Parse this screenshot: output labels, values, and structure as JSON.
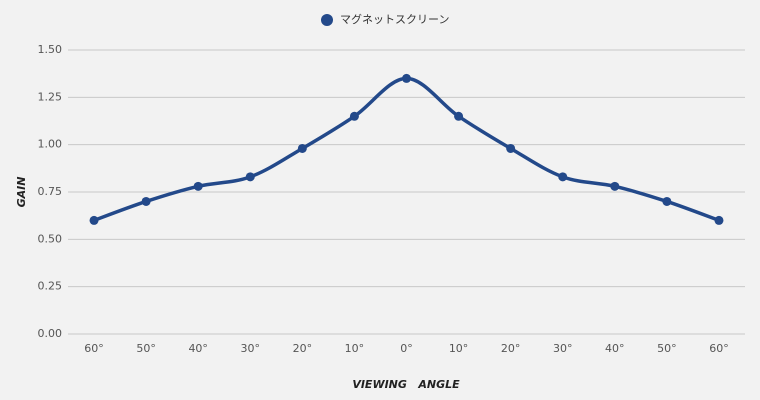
{
  "chart_data": {
    "type": "line",
    "x_label": "VIEWING   ANGLE",
    "y_label": "GAIN",
    "categories": [
      "60°",
      "50°",
      "40°",
      "30°",
      "20°",
      "10°",
      "0°",
      "10°",
      "20°",
      "30°",
      "40°",
      "50°",
      "60°"
    ],
    "series": [
      {
        "name": "マグネットスクリーン",
        "color": "#23498a",
        "values": [
          0.6,
          0.7,
          0.78,
          0.83,
          0.98,
          1.15,
          1.35,
          1.15,
          0.98,
          0.83,
          0.78,
          0.7,
          0.6
        ]
      }
    ],
    "ylim": [
      0,
      1.5
    ],
    "yticks": [
      {
        "value": 0,
        "label": "0.00"
      },
      {
        "value": 0.25,
        "label": "0.25"
      },
      {
        "value": 0.5,
        "label": "0.50"
      },
      {
        "value": 0.75,
        "label": "0.75"
      },
      {
        "value": 1,
        "label": "1.00"
      },
      {
        "value": 1.25,
        "label": "1.25"
      },
      {
        "value": 1.5,
        "label": "1.50"
      }
    ],
    "grid": true,
    "legend": "top"
  }
}
